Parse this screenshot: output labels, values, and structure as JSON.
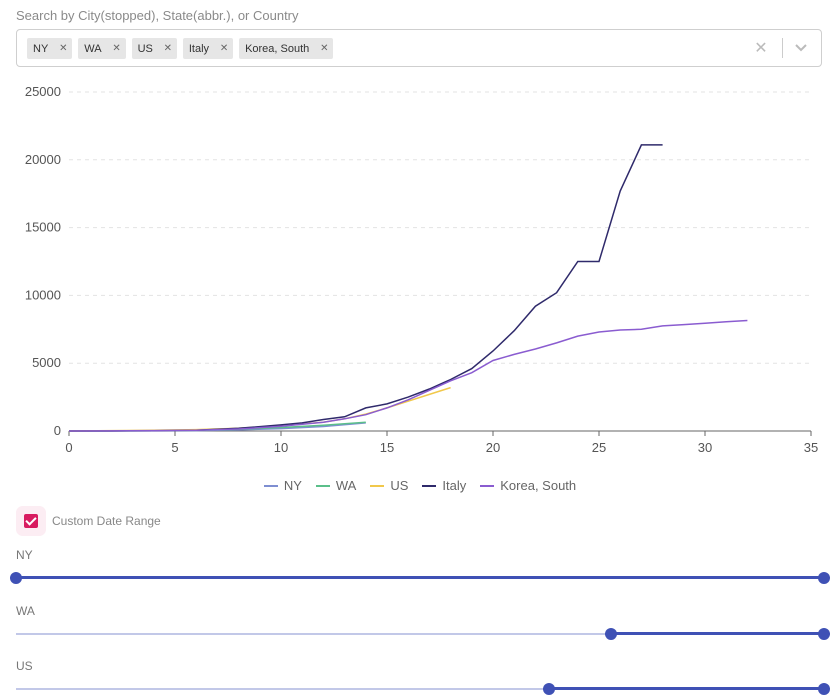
{
  "search": {
    "label": "Search by City(stopped), State(abbr.), or Country",
    "chips": [
      "NY",
      "WA",
      "US",
      "Italy",
      "Korea, South"
    ]
  },
  "chart_data": {
    "type": "line",
    "x_ticks": [
      0,
      5,
      10,
      15,
      20,
      25,
      30,
      35
    ],
    "y_ticks": [
      0,
      5000,
      10000,
      15000,
      20000,
      25000
    ],
    "xlim": [
      0,
      35
    ],
    "ylim": [
      0,
      25000
    ],
    "grid": "horizontal dashed",
    "legend_position": "bottom",
    "series": [
      {
        "name": "NY",
        "color": "#7e8ed1",
        "x": [
          0,
          2,
          4,
          6,
          8,
          10,
          12,
          14
        ],
        "y": [
          0,
          5,
          10,
          30,
          80,
          180,
          330,
          600
        ]
      },
      {
        "name": "WA",
        "color": "#5bbf8a",
        "x": [
          0,
          2,
          4,
          6,
          8,
          10,
          12,
          14
        ],
        "y": [
          0,
          10,
          25,
          60,
          130,
          260,
          420,
          640
        ]
      },
      {
        "name": "US",
        "color": "#f1c84b",
        "x": [
          0,
          2,
          4,
          6,
          8,
          10,
          12,
          13,
          14,
          15,
          16,
          17,
          18
        ],
        "y": [
          0,
          30,
          60,
          100,
          200,
          400,
          650,
          900,
          1250,
          1700,
          2200,
          2700,
          3200
        ]
      },
      {
        "name": "Italy",
        "color": "#2f2a6b",
        "x": [
          0,
          2,
          4,
          6,
          8,
          10,
          11,
          12,
          13,
          14,
          15,
          16,
          17,
          18,
          19,
          20,
          21,
          22,
          23,
          24,
          25,
          26,
          27,
          28
        ],
        "y": [
          0,
          3,
          20,
          60,
          200,
          450,
          600,
          850,
          1050,
          1700,
          2000,
          2500,
          3100,
          3800,
          4600,
          5900,
          7400,
          9200,
          10200,
          12500,
          12500,
          17700,
          21100,
          21100
        ]
      },
      {
        "name": "Korea, South",
        "color": "#8a5cd0",
        "x": [
          0,
          2,
          4,
          6,
          8,
          10,
          12,
          13,
          14,
          15,
          16,
          17,
          18,
          19,
          20,
          21,
          22,
          23,
          24,
          25,
          26,
          27,
          28,
          29,
          30,
          31,
          32
        ],
        "y": [
          0,
          10,
          30,
          60,
          150,
          350,
          650,
          900,
          1200,
          1700,
          2300,
          3000,
          3700,
          4300,
          5200,
          5650,
          6050,
          6500,
          7000,
          7300,
          7450,
          7500,
          7750,
          7850,
          7950,
          8050,
          8150
        ]
      }
    ]
  },
  "controls": {
    "custom_range_label": "Custom Date Range",
    "custom_range_checked": true,
    "ranges": [
      {
        "name": "NY",
        "start_fraction": 0.0,
        "end_fraction": 1.0
      },
      {
        "name": "WA",
        "start_fraction": 0.737,
        "end_fraction": 1.0
      },
      {
        "name": "US",
        "start_fraction": 0.66,
        "end_fraction": 1.0
      }
    ]
  },
  "icons": {
    "clear": "clear-icon",
    "dropdown": "chevron-down-icon",
    "chip_remove": "close-icon"
  },
  "colors": {
    "accent": "#3f51b5",
    "checkbox": "#d81b60"
  }
}
